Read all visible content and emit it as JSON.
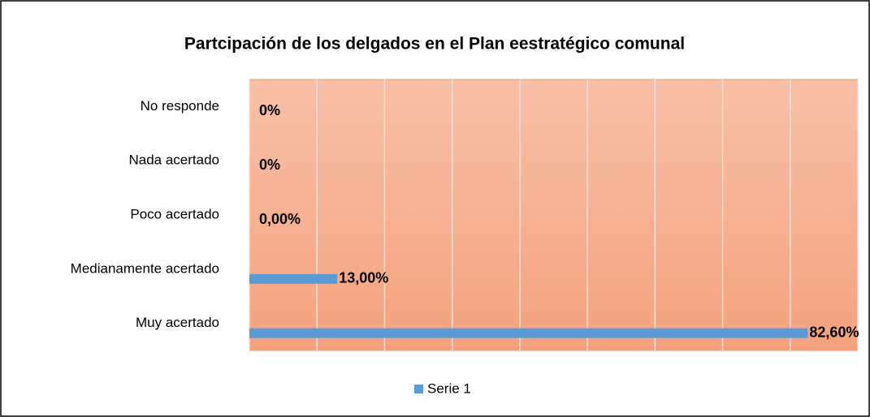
{
  "chart_data": {
    "type": "hbar",
    "title": "Partcipación de los delgados en el Plan eestratégico comunal",
    "categories": [
      "No responde",
      "Nada acertado",
      "Poco acertado",
      "Medianamente acertado",
      "Muy acertado"
    ],
    "series": [
      {
        "name": "Serie 1",
        "color": "#5b9bd5",
        "values": [
          0,
          0,
          0,
          13,
          82.6
        ],
        "value_labels": [
          "0%",
          "0%",
          "0,00%",
          "13,00%",
          "82,60%"
        ]
      }
    ],
    "xlim": [
      0,
      90
    ],
    "xticks": [
      0,
      10,
      20,
      30,
      40,
      50,
      60,
      70,
      80,
      90
    ],
    "grid": true,
    "legend": "bottom"
  }
}
